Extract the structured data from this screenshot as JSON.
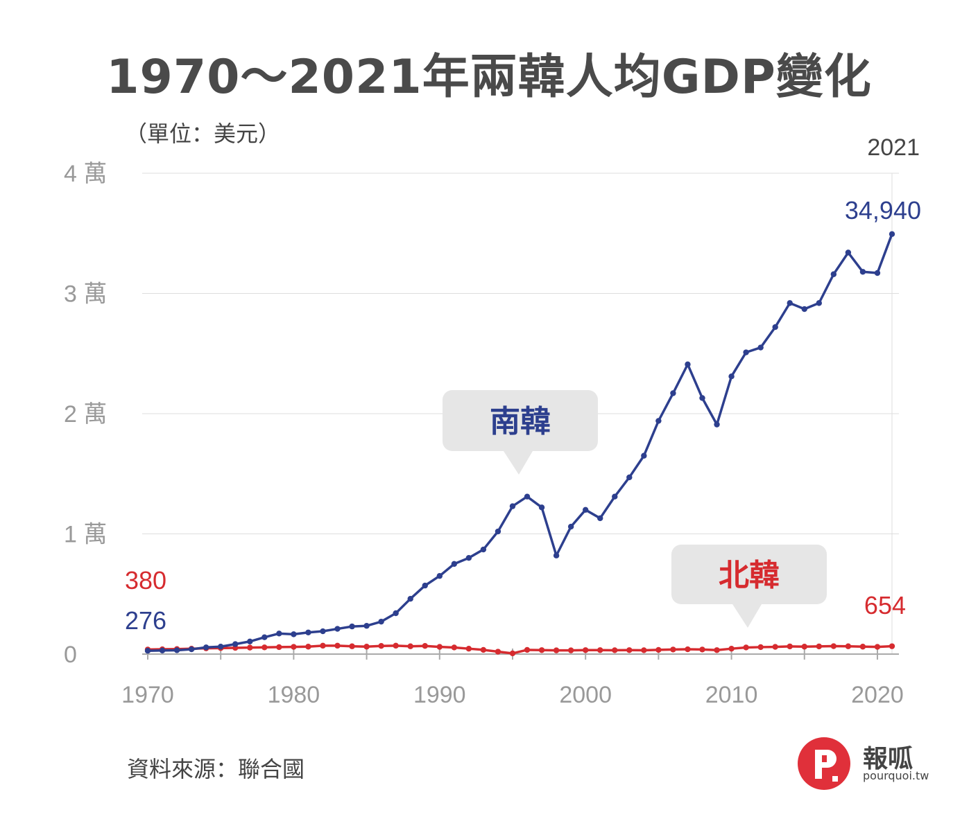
{
  "title": "1970～2021年兩韓人均GDP變化",
  "unit_label": "（單位：美元）",
  "source_label": "資料來源：聯合國",
  "brand": {
    "name": "報呱",
    "url": "pourquoi.tw",
    "logo_letter": "P"
  },
  "colors": {
    "south": "#2d3f8e",
    "north": "#d62b2f",
    "grid": "#dddddd",
    "tick": "#999999",
    "callout_bg": "#e6e6e6"
  },
  "chart_data": {
    "type": "line",
    "title": "1970～2021年兩韓人均GDP變化",
    "ylabel": "（單位：美元）",
    "xlim": [
      1970,
      2021
    ],
    "ylim": [
      0,
      40000
    ],
    "y_ticks": [
      {
        "value": 0,
        "label": "0"
      },
      {
        "value": 10000,
        "label": "1 萬"
      },
      {
        "value": 20000,
        "label": "2 萬"
      },
      {
        "value": 30000,
        "label": "3 萬"
      },
      {
        "value": 40000,
        "label": "4 萬"
      }
    ],
    "x_ticks": [
      1970,
      1980,
      1990,
      2000,
      2010,
      2020
    ],
    "top_year_label": "2021",
    "x": [
      1970,
      1971,
      1972,
      1973,
      1974,
      1975,
      1976,
      1977,
      1978,
      1979,
      1980,
      1981,
      1982,
      1983,
      1984,
      1985,
      1986,
      1987,
      1988,
      1989,
      1990,
      1991,
      1992,
      1993,
      1994,
      1995,
      1996,
      1997,
      1998,
      1999,
      2000,
      2001,
      2002,
      2003,
      2004,
      2005,
      2006,
      2007,
      2008,
      2009,
      2010,
      2011,
      2012,
      2013,
      2014,
      2015,
      2016,
      2017,
      2018,
      2019,
      2020,
      2021
    ],
    "series": [
      {
        "name": "南韓",
        "callout": "南韓",
        "start_label": "276",
        "end_label": "34,940",
        "values": [
          276,
          300,
          320,
          400,
          560,
          620,
          830,
          1050,
          1400,
          1710,
          1650,
          1800,
          1900,
          2100,
          2300,
          2350,
          2700,
          3400,
          4600,
          5700,
          6500,
          7500,
          8000,
          8700,
          10200,
          12300,
          13100,
          12200,
          8200,
          10600,
          12000,
          11300,
          13100,
          14700,
          16500,
          19400,
          21700,
          24100,
          21300,
          19100,
          23100,
          25100,
          25500,
          27200,
          29200,
          28700,
          29200,
          31600,
          33400,
          31800,
          31700,
          34940
        ]
      },
      {
        "name": "北韓",
        "callout": "北韓",
        "start_label": "380",
        "end_label": "654",
        "values": [
          380,
          400,
          420,
          450,
          480,
          500,
          520,
          540,
          560,
          580,
          600,
          620,
          700,
          700,
          650,
          620,
          680,
          700,
          650,
          680,
          600,
          550,
          450,
          350,
          200,
          60,
          350,
          330,
          310,
          310,
          330,
          330,
          320,
          330,
          320,
          350,
          380,
          400,
          380,
          330,
          450,
          550,
          580,
          600,
          640,
          620,
          640,
          660,
          650,
          620,
          600,
          654
        ]
      }
    ]
  }
}
